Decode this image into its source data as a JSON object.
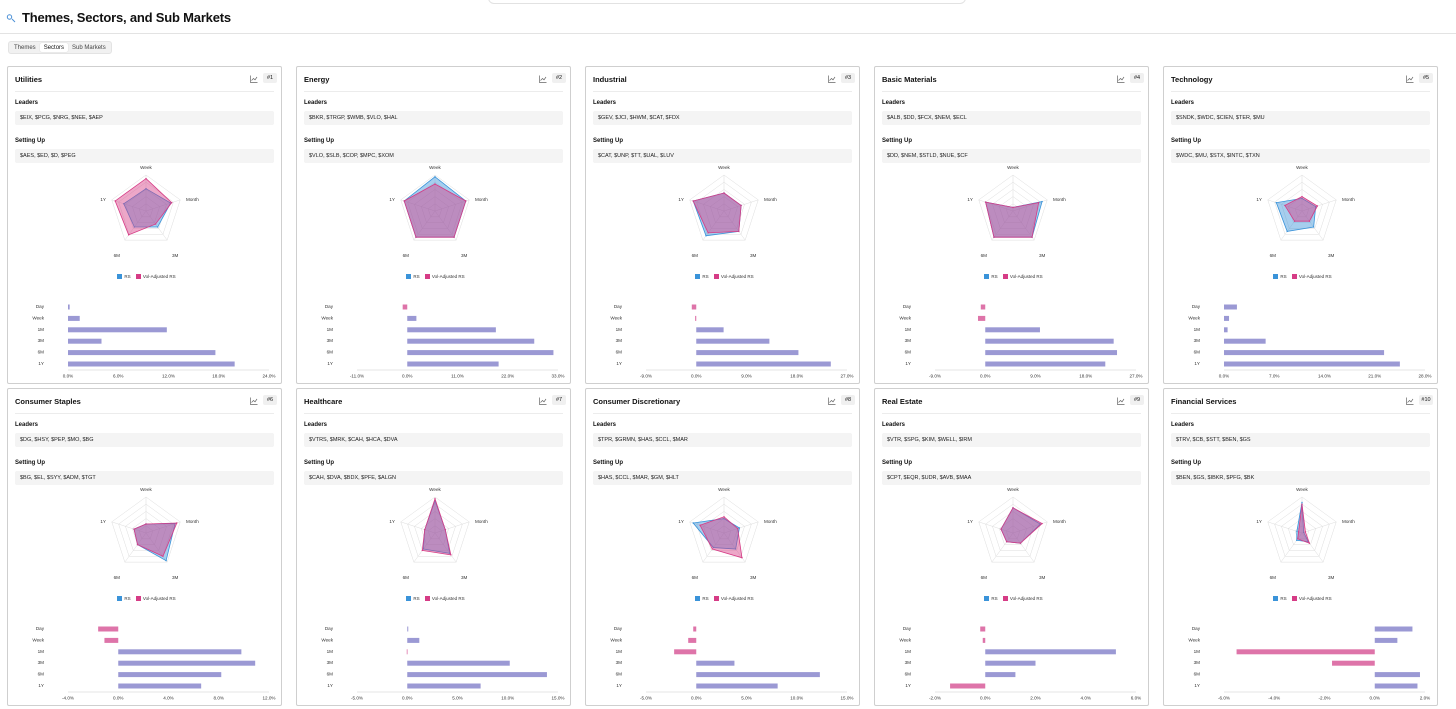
{
  "page": {
    "title": "Themes, Sectors, and Sub Markets",
    "logo_icon": "sector-logo-icon",
    "tabs": [
      {
        "label": "Themes",
        "active": false
      },
      {
        "label": "Sectors",
        "active": true
      },
      {
        "label": "Sub Markets",
        "active": false
      }
    ]
  },
  "colors": {
    "rs": "#3a93d9",
    "vol": "#d63c86",
    "bar": "#9b99d4",
    "bar_neg": "#de74a9"
  },
  "labels": {
    "leaders": "Leaders",
    "setting_up": "Setting Up",
    "legend_rs": "RS",
    "legend_vol": "Vol-Adjusted RS",
    "radar_axes": [
      "Week",
      "Month",
      "3M",
      "6M",
      "1Y"
    ],
    "bar_periods": [
      "Day",
      "Week",
      "1M",
      "3M",
      "6M",
      "1Y"
    ]
  },
  "sectors": [
    {
      "name": "Utilities",
      "rank": "#1",
      "leaders": "$EIX, $PCG, $NRG, $NEE, $AEP",
      "setting_up": "$AES, $ED, $D, $PEG",
      "radar": {
        "rs": [
          0.62,
          0.72,
          0.55,
          0.55,
          0.65
        ],
        "vol": [
          0.9,
          0.75,
          0.45,
          0.82,
          0.9
        ]
      },
      "bars": {
        "ticks": [
          "0.0%",
          "6.0%",
          "12.0%",
          "18.0%",
          "24.0%"
        ],
        "min": 0,
        "max": 24,
        "values": [
          0.2,
          1.4,
          11.8,
          4.0,
          17.6,
          19.9
        ]
      }
    },
    {
      "name": "Energy",
      "rank": "#2",
      "leaders": "$BKR, $TRGP, $WMB, $VLO, $HAL",
      "setting_up": "$VLO, $SLB, $COP, $MPC, $XOM",
      "radar": {
        "rs": [
          0.95,
          0.9,
          0.9,
          0.9,
          0.9
        ],
        "vol": [
          0.75,
          0.9,
          0.9,
          0.9,
          0.9
        ]
      },
      "bars": {
        "ticks": [
          "-11.0%",
          "0.0%",
          "11.0%",
          "22.0%",
          "33.0%"
        ],
        "min": -11,
        "max": 33,
        "values": [
          -1.0,
          2.0,
          19.4,
          27.8,
          32.0,
          20.0
        ]
      }
    },
    {
      "name": "Industrial",
      "rank": "#3",
      "leaders": "$GEV, $JCI, $HWM, $CAT, $FDX",
      "setting_up": "$CAT, $UNP, $TT, $UAL, $LUV",
      "radar": {
        "rs": [
          0.5,
          0.5,
          0.7,
          0.85,
          0.9
        ],
        "vol": [
          0.5,
          0.5,
          0.7,
          0.75,
          0.9
        ]
      },
      "bars": {
        "ticks": [
          "-9.0%",
          "0.0%",
          "9.0%",
          "18.0%",
          "27.0%"
        ],
        "min": -9,
        "max": 27,
        "values": [
          -0.8,
          -0.2,
          4.9,
          13.1,
          18.3,
          24.1
        ]
      }
    },
    {
      "name": "Basic Materials",
      "rank": "#4",
      "leaders": "$ALB, $DD, $FCX, $NEM, $ECL",
      "setting_up": "$DD, $NEM, $STLD, $NUE, $CF",
      "radar": {
        "rs": [
          0.1,
          0.85,
          0.9,
          0.9,
          0.8
        ],
        "vol": [
          0.1,
          0.75,
          0.9,
          0.9,
          0.8
        ]
      },
      "bars": {
        "ticks": [
          "-9.0%",
          "0.0%",
          "9.0%",
          "18.0%",
          "27.0%"
        ],
        "min": -9,
        "max": 27,
        "values": [
          -0.8,
          -1.3,
          9.8,
          23.0,
          23.6,
          21.5
        ]
      }
    },
    {
      "name": "Technology",
      "rank": "#5",
      "leaders": "$SNDK, $WDC, $CIEN, $TER, $MU",
      "setting_up": "$WDC, $MU, $STX, $INTC, $TXN",
      "radar": {
        "rs": [
          0.35,
          0.4,
          0.55,
          0.7,
          0.75
        ],
        "vol": [
          0.4,
          0.45,
          0.35,
          0.35,
          0.5
        ]
      },
      "bars": {
        "ticks": [
          "0.0%",
          "7.0%",
          "14.0%",
          "21.0%",
          "28.0%"
        ],
        "min": 0,
        "max": 28,
        "values": [
          1.8,
          0.7,
          0.5,
          5.8,
          22.3,
          24.5
        ]
      }
    },
    {
      "name": "Consumer Staples",
      "rank": "#6",
      "leaders": "$DG, $HSY, $PEP, $MO, $BG",
      "setting_up": "$BG, $EL, $SYY, $ADM, $TGT",
      "radar": {
        "rs": [
          0.25,
          0.85,
          0.95,
          0.4,
          0.35
        ],
        "vol": [
          0.25,
          0.9,
          0.8,
          0.4,
          0.35
        ]
      },
      "bars": {
        "ticks": [
          "-4.0%",
          "0.0%",
          "4.0%",
          "8.0%",
          "12.0%"
        ],
        "min": -4,
        "max": 12,
        "values": [
          -1.6,
          -1.1,
          9.8,
          10.9,
          8.2,
          6.6
        ]
      }
    },
    {
      "name": "Healthcare",
      "rank": "#7",
      "leaders": "$VTRS, $MRK, $CAH, $HCA, $DVA",
      "setting_up": "$CAH, $DVA, $BDX, $PFE, $ALGN",
      "radar": {
        "rs": [
          0.9,
          0.3,
          0.7,
          0.55,
          0.3
        ],
        "vol": [
          0.95,
          0.3,
          0.75,
          0.6,
          0.3
        ]
      },
      "bars": {
        "ticks": [
          "-5.0%",
          "0.0%",
          "5.0%",
          "10.0%",
          "15.0%"
        ],
        "min": -5,
        "max": 15,
        "values": [
          0.1,
          1.2,
          -0.05,
          10.2,
          13.9,
          7.3
        ]
      }
    },
    {
      "name": "Consumer Discretionary",
      "rank": "#8",
      "leaders": "$TPR, $GRMN, $HAS, $CCL, $MAR",
      "setting_up": "$HAS, $CCL, $MAR, $GM, $HLT",
      "radar": {
        "rs": [
          0.4,
          0.45,
          0.55,
          0.5,
          0.9
        ],
        "vol": [
          0.45,
          0.4,
          0.85,
          0.55,
          0.7
        ]
      },
      "bars": {
        "ticks": [
          "-5.0%",
          "0.0%",
          "5.0%",
          "10.0%",
          "15.0%"
        ],
        "min": -5,
        "max": 15,
        "values": [
          -0.3,
          -0.8,
          -2.2,
          3.8,
          12.3,
          8.1
        ]
      }
    },
    {
      "name": "Real Estate",
      "rank": "#9",
      "leaders": "$VTR, $SPG, $KIM, $WELL, $IRM",
      "setting_up": "$CPT, $EQR, $UDR, $AVB, $MAA",
      "radar": {
        "rs": [
          0.7,
          0.8,
          0.35,
          0.3,
          0.35
        ],
        "vol": [
          0.7,
          0.85,
          0.35,
          0.3,
          0.35
        ]
      },
      "bars": {
        "ticks": [
          "-2.0%",
          "0.0%",
          "2.0%",
          "4.0%",
          "6.0%"
        ],
        "min": -2,
        "max": 6,
        "values": [
          -0.2,
          -0.1,
          5.2,
          2.0,
          1.2,
          -1.4
        ]
      }
    },
    {
      "name": "Financial Services",
      "rank": "#10",
      "leaders": "$TRV, $CB, $STT, $BEN, $GS",
      "setting_up": "$BEN, $GS, $IBKR, $PFG, $BK",
      "radar": {
        "rs": [
          0.85,
          0.05,
          0.3,
          0.25,
          0.15
        ],
        "vol": [
          0.8,
          0.1,
          0.35,
          0.2,
          0.1
        ]
      },
      "bars": {
        "ticks": [
          "-6.0%",
          "-4.0%",
          "-2.0%",
          "0.0%",
          "2.0%"
        ],
        "min": -6,
        "max": 2,
        "values": [
          1.5,
          0.9,
          -5.5,
          -1.7,
          1.8,
          1.7
        ]
      }
    }
  ]
}
